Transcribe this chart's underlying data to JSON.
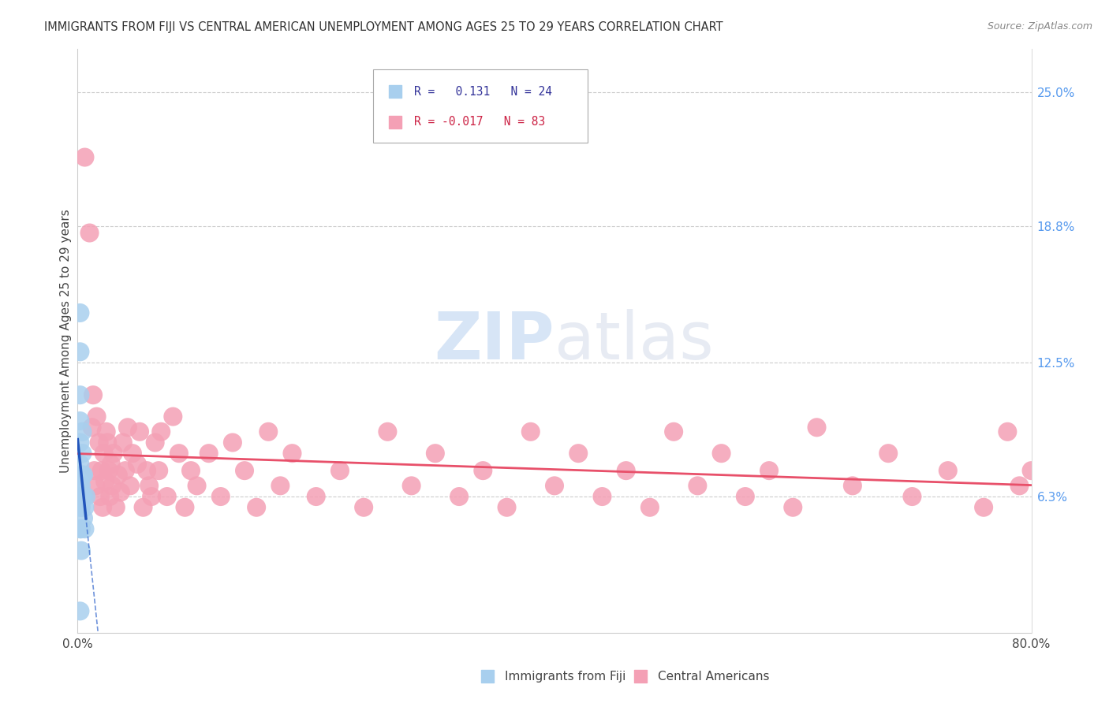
{
  "title": "IMMIGRANTS FROM FIJI VS CENTRAL AMERICAN UNEMPLOYMENT AMONG AGES 25 TO 29 YEARS CORRELATION CHART",
  "source": "Source: ZipAtlas.com",
  "ylabel": "Unemployment Among Ages 25 to 29 years",
  "xlim": [
    0.0,
    0.8
  ],
  "ylim": [
    0.0,
    0.27
  ],
  "xtick_labels": [
    "0.0%",
    "",
    "",
    "",
    "80.0%"
  ],
  "xtick_vals": [
    0.0,
    0.2,
    0.4,
    0.6,
    0.8
  ],
  "ytick_labels_right": [
    "6.3%",
    "12.5%",
    "18.8%",
    "25.0%"
  ],
  "ytick_vals_right": [
    0.063,
    0.125,
    0.188,
    0.25
  ],
  "legend_fiji_R": "0.131",
  "legend_fiji_N": "24",
  "legend_ca_R": "-0.017",
  "legend_ca_N": "83",
  "fiji_color": "#A8CFEE",
  "ca_color": "#F4A0B5",
  "fiji_trendline_color": "#3366CC",
  "ca_trendline_color": "#E8506A",
  "fiji_solid_color": "#2255BB",
  "watermark_zip": "ZIP",
  "watermark_atlas": "atlas",
  "fiji_points_x": [
    0.002,
    0.002,
    0.002,
    0.002,
    0.002,
    0.002,
    0.002,
    0.002,
    0.002,
    0.003,
    0.003,
    0.003,
    0.003,
    0.004,
    0.004,
    0.004,
    0.004,
    0.005,
    0.005,
    0.005,
    0.006,
    0.006,
    0.007,
    0.002
  ],
  "fiji_points_y": [
    0.148,
    0.13,
    0.11,
    0.098,
    0.088,
    0.078,
    0.068,
    0.058,
    0.048,
    0.068,
    0.058,
    0.048,
    0.038,
    0.093,
    0.083,
    0.073,
    0.063,
    0.073,
    0.063,
    0.053,
    0.058,
    0.048,
    0.063,
    0.01
  ],
  "ca_points_x": [
    0.006,
    0.01,
    0.012,
    0.013,
    0.014,
    0.015,
    0.016,
    0.018,
    0.019,
    0.02,
    0.021,
    0.022,
    0.023,
    0.024,
    0.025,
    0.026,
    0.027,
    0.028,
    0.029,
    0.03,
    0.032,
    0.034,
    0.036,
    0.038,
    0.04,
    0.042,
    0.044,
    0.046,
    0.05,
    0.052,
    0.055,
    0.058,
    0.06,
    0.062,
    0.065,
    0.068,
    0.07,
    0.075,
    0.08,
    0.085,
    0.09,
    0.095,
    0.1,
    0.11,
    0.12,
    0.13,
    0.14,
    0.15,
    0.16,
    0.17,
    0.18,
    0.2,
    0.22,
    0.24,
    0.26,
    0.28,
    0.3,
    0.32,
    0.34,
    0.36,
    0.38,
    0.4,
    0.42,
    0.44,
    0.46,
    0.48,
    0.5,
    0.52,
    0.54,
    0.56,
    0.58,
    0.6,
    0.62,
    0.65,
    0.68,
    0.7,
    0.73,
    0.76,
    0.78,
    0.79,
    0.8
  ],
  "ca_points_y": [
    0.22,
    0.185,
    0.095,
    0.11,
    0.075,
    0.068,
    0.1,
    0.088,
    0.063,
    0.075,
    0.058,
    0.083,
    0.07,
    0.093,
    0.088,
    0.075,
    0.063,
    0.078,
    0.068,
    0.083,
    0.058,
    0.073,
    0.065,
    0.088,
    0.075,
    0.095,
    0.068,
    0.083,
    0.078,
    0.093,
    0.058,
    0.075,
    0.068,
    0.063,
    0.088,
    0.075,
    0.093,
    0.063,
    0.1,
    0.083,
    0.058,
    0.075,
    0.068,
    0.083,
    0.063,
    0.088,
    0.075,
    0.058,
    0.093,
    0.068,
    0.083,
    0.063,
    0.075,
    0.058,
    0.093,
    0.068,
    0.083,
    0.063,
    0.075,
    0.058,
    0.093,
    0.068,
    0.083,
    0.063,
    0.075,
    0.058,
    0.093,
    0.068,
    0.083,
    0.063,
    0.075,
    0.058,
    0.095,
    0.068,
    0.083,
    0.063,
    0.075,
    0.058,
    0.093,
    0.068,
    0.075
  ]
}
